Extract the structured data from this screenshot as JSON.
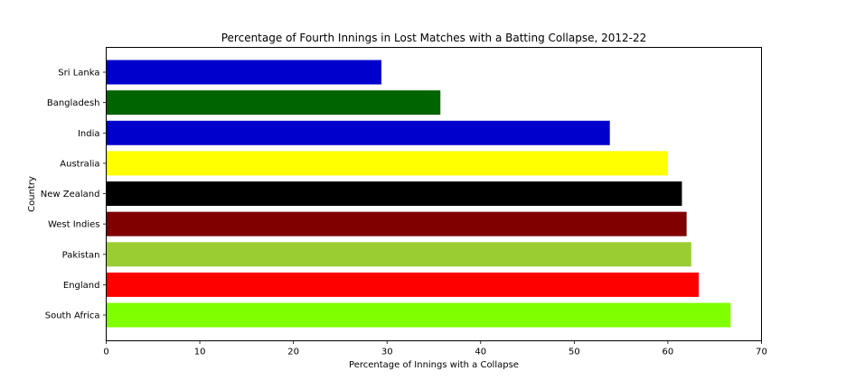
{
  "chart_data": {
    "type": "bar",
    "orientation": "horizontal",
    "title": "Percentage of Fourth Innings in Lost Matches with a Batting Collapse, 2012-22",
    "xlabel": "Percentage of Innings with a Collapse",
    "ylabel": "Country",
    "xlim": [
      0,
      70
    ],
    "xticks": [
      0,
      10,
      20,
      30,
      40,
      50,
      60,
      70
    ],
    "grid": false,
    "legend": "none",
    "categories": [
      "South Africa",
      "England",
      "Pakistan",
      "West Indies",
      "New Zealand",
      "Australia",
      "India",
      "Bangladesh",
      "Sri Lanka"
    ],
    "values": [
      66.7,
      63.3,
      62.5,
      62.0,
      61.5,
      60.0,
      53.8,
      35.7,
      29.4
    ],
    "colors": [
      "#7fff00",
      "#ff0000",
      "#9acd32",
      "#800000",
      "#000000",
      "#ffff00",
      "#0000cd",
      "#006400",
      "#0000cd"
    ]
  }
}
